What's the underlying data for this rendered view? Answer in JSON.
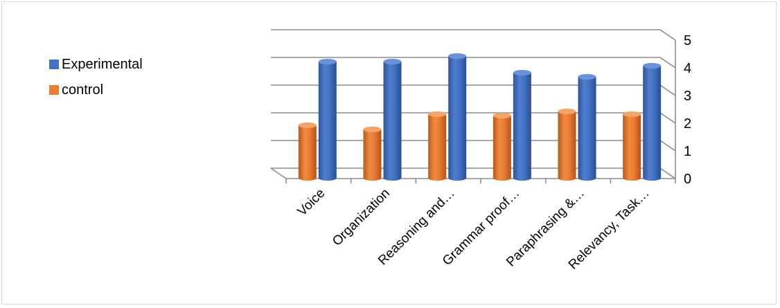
{
  "chart_data": {
    "type": "bar",
    "style": "3d-cylinder",
    "categories": [
      "Voice",
      "Organization",
      "Reasoning and…",
      "Grammar proof…",
      "Paraphrasing &…",
      "Relevancy, Task…"
    ],
    "series": [
      {
        "name": "Experimental",
        "color": "#4472C4",
        "values": [
          4.2,
          4.2,
          4.4,
          3.8,
          3.65,
          4.05
        ]
      },
      {
        "name": "control",
        "color": "#ED7D31",
        "values": [
          1.9,
          1.75,
          2.3,
          2.25,
          2.4,
          2.3
        ]
      }
    ],
    "ylim": [
      0,
      5
    ],
    "yticks": [
      "0",
      "1",
      "2",
      "3",
      "4",
      "5"
    ],
    "axis_position": "right",
    "grid": true,
    "legend_position": "left"
  }
}
